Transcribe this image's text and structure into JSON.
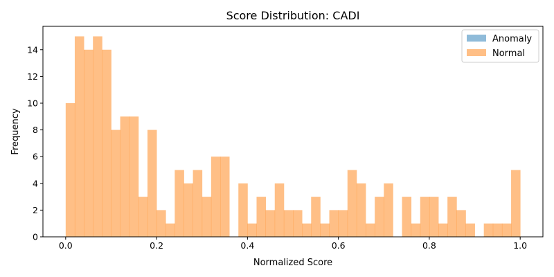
{
  "chart_data": {
    "type": "bar",
    "title": "Score Distribution: CADI",
    "xlabel": "Normalized Score",
    "ylabel": "Frequency",
    "xlim": [
      -0.05,
      1.05
    ],
    "ylim": [
      0,
      15.75
    ],
    "x_ticks": [
      0.0,
      0.2,
      0.4,
      0.6,
      0.8,
      1.0
    ],
    "x_tick_labels": [
      "0.0",
      "0.2",
      "0.4",
      "0.6",
      "0.8",
      "1.0"
    ],
    "y_ticks": [
      0,
      2,
      4,
      6,
      8,
      10,
      12,
      14
    ],
    "y_tick_labels": [
      "0",
      "2",
      "4",
      "6",
      "8",
      "10",
      "12",
      "14"
    ],
    "grid": false,
    "legend_position": "top-right",
    "bin_width": 0.02,
    "bin_starts": [
      0.0,
      0.02,
      0.04,
      0.06,
      0.08,
      0.1,
      0.12,
      0.14,
      0.16,
      0.18,
      0.2,
      0.22,
      0.24,
      0.26,
      0.28,
      0.3,
      0.32,
      0.34,
      0.36,
      0.38,
      0.4,
      0.42,
      0.44,
      0.46,
      0.48,
      0.5,
      0.52,
      0.54,
      0.56,
      0.58,
      0.6,
      0.62,
      0.64,
      0.66,
      0.68,
      0.7,
      0.72,
      0.74,
      0.76,
      0.78,
      0.8,
      0.82,
      0.84,
      0.86,
      0.88,
      0.9,
      0.92,
      0.94,
      0.96,
      0.98
    ],
    "series": [
      {
        "name": "Anomaly",
        "color": "#1f77b4",
        "opacity": 0.5,
        "values": [
          0,
          0,
          0,
          0,
          0,
          0,
          0,
          0,
          0,
          0,
          0,
          0,
          0,
          0,
          0,
          0,
          0,
          0,
          0,
          0,
          0,
          0,
          0,
          0,
          0,
          0,
          0,
          0,
          0,
          0,
          0,
          0,
          0,
          0,
          0,
          0,
          0,
          0,
          0,
          0,
          0,
          0,
          0,
          0,
          0,
          0,
          0,
          0,
          0,
          0
        ]
      },
      {
        "name": "Normal",
        "color": "#ff7f0e",
        "opacity": 0.5,
        "values": [
          10,
          15,
          14,
          15,
          14,
          8,
          9,
          9,
          3,
          8,
          2,
          1,
          5,
          4,
          5,
          3,
          6,
          6,
          0,
          4,
          1,
          3,
          2,
          4,
          2,
          2,
          1,
          3,
          1,
          2,
          2,
          5,
          4,
          1,
          3,
          4,
          0,
          3,
          1,
          3,
          3,
          1,
          3,
          2,
          1,
          0,
          1,
          1,
          1,
          5
        ]
      }
    ]
  }
}
